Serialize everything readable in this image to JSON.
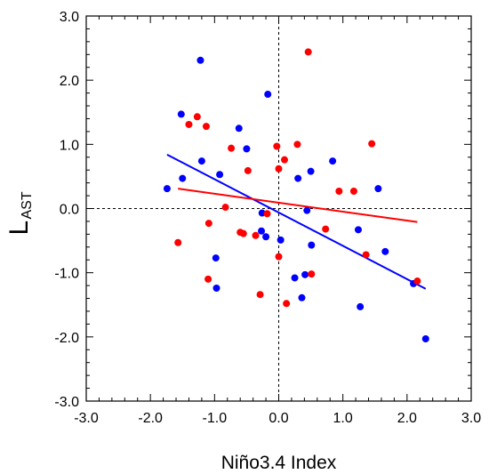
{
  "chart_data": {
    "type": "scatter",
    "title": "",
    "xlabel": "Niño3.4 Index",
    "ylabel_main": "L",
    "ylabel_sub": "AST",
    "xlim": [
      -3.0,
      3.0
    ],
    "ylim": [
      -3.0,
      3.0
    ],
    "x_ticks": [
      -3.0,
      -2.0,
      -1.0,
      0.0,
      1.0,
      2.0,
      3.0
    ],
    "y_ticks": [
      -3.0,
      -2.0,
      -1.0,
      0.0,
      1.0,
      2.0,
      3.0
    ],
    "x_tick_labels": [
      "-3.0",
      "-2.0",
      "-1.0",
      "0.0",
      "1.0",
      "2.0",
      "3.0"
    ],
    "y_tick_labels": [
      "-3.0",
      "-2.0",
      "-1.0",
      "0.0",
      "1.0",
      "2.0",
      "3.0"
    ],
    "grid": false,
    "zero_lines": "dashed",
    "colors": {
      "blue": "#0000ff",
      "red": "#ff0000"
    },
    "series": [
      {
        "color": "#0000ff",
        "points": [
          [
            -1.74,
            0.31
          ],
          [
            -1.52,
            1.47
          ],
          [
            -1.5,
            0.47
          ],
          [
            -1.22,
            2.31
          ],
          [
            -1.2,
            0.74
          ],
          [
            -0.98,
            -0.77
          ],
          [
            -0.97,
            -1.24
          ],
          [
            -0.92,
            0.53
          ],
          [
            -0.62,
            1.25
          ],
          [
            -0.5,
            0.93
          ],
          [
            -0.27,
            -0.35
          ],
          [
            -0.26,
            -0.07
          ],
          [
            -0.2,
            -0.44
          ],
          [
            -0.17,
            1.78
          ],
          [
            0.03,
            -0.49
          ],
          [
            0.25,
            -1.08
          ],
          [
            0.3,
            0.47
          ],
          [
            0.36,
            -1.39
          ],
          [
            0.41,
            -1.03
          ],
          [
            0.44,
            -0.03
          ],
          [
            0.5,
            0.58
          ],
          [
            0.51,
            -0.57
          ],
          [
            0.84,
            0.74
          ],
          [
            1.24,
            -0.33
          ],
          [
            1.27,
            -1.53
          ],
          [
            1.55,
            0.31
          ],
          [
            1.66,
            -0.67
          ],
          [
            2.1,
            -1.17
          ],
          [
            2.29,
            -2.03
          ]
        ],
        "fit": {
          "x": [
            -1.74,
            2.29
          ],
          "y": [
            0.84,
            -1.25
          ]
        }
      },
      {
        "color": "#ff0000",
        "points": [
          [
            -1.57,
            -0.53
          ],
          [
            -1.4,
            1.31
          ],
          [
            -1.27,
            1.43
          ],
          [
            -1.13,
            1.28
          ],
          [
            -1.1,
            -1.1
          ],
          [
            -1.09,
            -0.23
          ],
          [
            -0.83,
            0.02
          ],
          [
            -0.74,
            0.94
          ],
          [
            -0.6,
            -0.37
          ],
          [
            -0.55,
            -0.39
          ],
          [
            -0.48,
            0.59
          ],
          [
            -0.36,
            -0.42
          ],
          [
            -0.29,
            -1.34
          ],
          [
            -0.18,
            -0.08
          ],
          [
            -0.03,
            0.97
          ],
          [
            0.0,
            0.62
          ],
          [
            0.0,
            -0.75
          ],
          [
            0.09,
            0.76
          ],
          [
            0.12,
            -1.48
          ],
          [
            0.29,
            1.0
          ],
          [
            0.46,
            2.44
          ],
          [
            0.51,
            -1.02
          ],
          [
            0.73,
            -0.32
          ],
          [
            0.94,
            0.27
          ],
          [
            1.17,
            0.27
          ],
          [
            1.36,
            -0.72
          ],
          [
            1.45,
            1.01
          ],
          [
            2.16,
            -1.13
          ]
        ],
        "fit": {
          "x": [
            -1.57,
            2.16
          ],
          "y": [
            0.31,
            -0.21
          ]
        }
      }
    ]
  }
}
